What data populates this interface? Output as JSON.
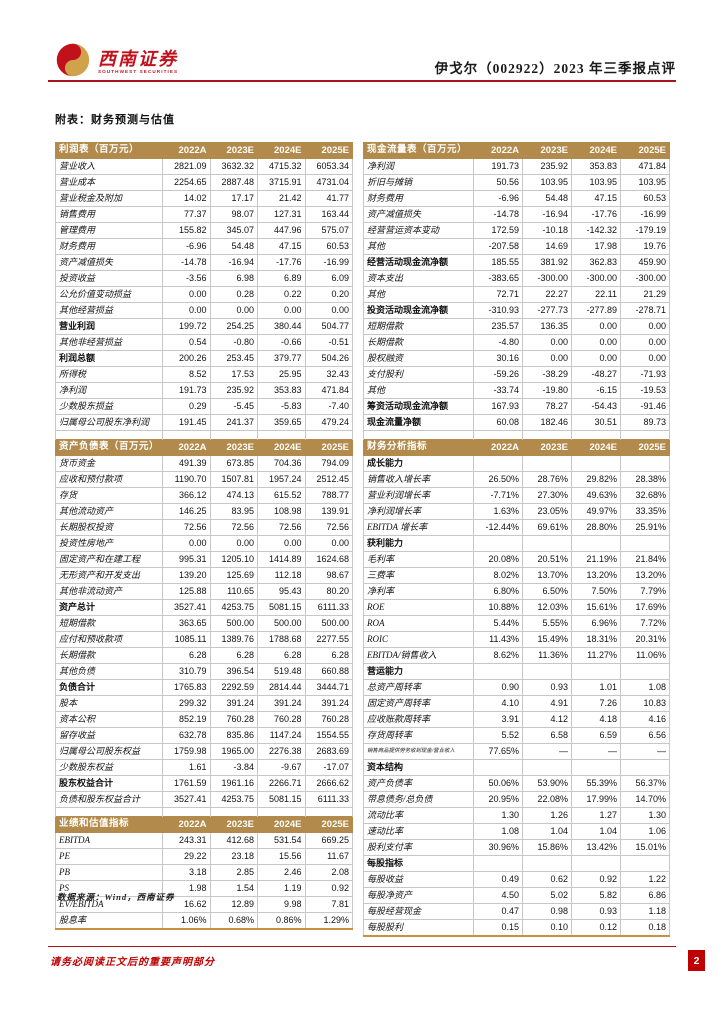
{
  "header": {
    "brand_cn": "西南证券",
    "brand_en": "SOUTHWEST SECURITIES",
    "report_title": "伊戈尔（002922）2023 年三季报点评"
  },
  "section_title": "附表：财务预测与估值",
  "years": [
    "2022A",
    "2023E",
    "2024E",
    "2025E"
  ],
  "colors": {
    "table_header_gold": "#b28a4b",
    "accent_red": "#c00000",
    "bottom_rule_gold": "#c9913d"
  },
  "tables": {
    "income": {
      "title": "利润表（百万元）",
      "rows": [
        {
          "label": "营业收入",
          "values": [
            "2821.09",
            "3632.32",
            "4715.32",
            "6053.34"
          ]
        },
        {
          "label": "营业成本",
          "values": [
            "2254.65",
            "2887.48",
            "3715.91",
            "4731.04"
          ]
        },
        {
          "label": "营业税金及附加",
          "values": [
            "14.02",
            "17.17",
            "21.42",
            "41.77"
          ]
        },
        {
          "label": "销售费用",
          "values": [
            "77.37",
            "98.07",
            "127.31",
            "163.44"
          ]
        },
        {
          "label": "管理费用",
          "values": [
            "155.82",
            "345.07",
            "447.96",
            "575.07"
          ]
        },
        {
          "label": "财务费用",
          "values": [
            "-6.96",
            "54.48",
            "47.15",
            "60.53"
          ]
        },
        {
          "label": "资产减值损失",
          "values": [
            "-14.78",
            "-16.94",
            "-17.76",
            "-16.99"
          ]
        },
        {
          "label": "投资收益",
          "values": [
            "-3.56",
            "6.98",
            "6.89",
            "6.09"
          ]
        },
        {
          "label": "公允价值变动损益",
          "values": [
            "0.00",
            "0.28",
            "0.22",
            "0.20"
          ]
        },
        {
          "label": "其他经营损益",
          "values": [
            "0.00",
            "0.00",
            "0.00",
            "0.00"
          ]
        },
        {
          "label": "营业利润",
          "bold": true,
          "values": [
            "199.72",
            "254.25",
            "380.44",
            "504.77"
          ]
        },
        {
          "label": "其他非经营损益",
          "values": [
            "0.54",
            "-0.80",
            "-0.66",
            "-0.51"
          ]
        },
        {
          "label": "利润总额",
          "bold": true,
          "values": [
            "200.26",
            "253.45",
            "379.77",
            "504.26"
          ]
        },
        {
          "label": "所得税",
          "values": [
            "8.52",
            "17.53",
            "25.95",
            "32.43"
          ]
        },
        {
          "label": "净利润",
          "values": [
            "191.73",
            "235.92",
            "353.83",
            "471.84"
          ]
        },
        {
          "label": "少数股东损益",
          "values": [
            "0.29",
            "-5.45",
            "-5.83",
            "-7.40"
          ]
        },
        {
          "label": "归属母公司股东净利润",
          "values": [
            "191.45",
            "241.37",
            "359.65",
            "479.24"
          ]
        }
      ]
    },
    "balance": {
      "title": "资产负债表（百万元）",
      "rows": [
        {
          "label": "货币资金",
          "values": [
            "491.39",
            "673.85",
            "704.36",
            "794.09"
          ]
        },
        {
          "label": "应收和预付款项",
          "values": [
            "1190.70",
            "1507.81",
            "1957.24",
            "2512.45"
          ]
        },
        {
          "label": "存货",
          "values": [
            "366.12",
            "474.13",
            "615.52",
            "788.77"
          ]
        },
        {
          "label": "其他流动资产",
          "values": [
            "146.25",
            "83.95",
            "108.98",
            "139.91"
          ]
        },
        {
          "label": "长期股权投资",
          "values": [
            "72.56",
            "72.56",
            "72.56",
            "72.56"
          ]
        },
        {
          "label": "投资性房地产",
          "values": [
            "0.00",
            "0.00",
            "0.00",
            "0.00"
          ]
        },
        {
          "label": "固定资产和在建工程",
          "values": [
            "995.31",
            "1205.10",
            "1414.89",
            "1624.68"
          ]
        },
        {
          "label": "无形资产和开发支出",
          "values": [
            "139.20",
            "125.69",
            "112.18",
            "98.67"
          ]
        },
        {
          "label": "其他非流动资产",
          "values": [
            "125.88",
            "110.65",
            "95.43",
            "80.20"
          ]
        },
        {
          "label": "资产总计",
          "bold": true,
          "values": [
            "3527.41",
            "4253.75",
            "5081.15",
            "6111.33"
          ]
        },
        {
          "label": "短期借款",
          "values": [
            "363.65",
            "500.00",
            "500.00",
            "500.00"
          ]
        },
        {
          "label": "应付和预收款项",
          "values": [
            "1085.11",
            "1389.76",
            "1788.68",
            "2277.55"
          ]
        },
        {
          "label": "长期借款",
          "values": [
            "6.28",
            "6.28",
            "6.28",
            "6.28"
          ]
        },
        {
          "label": "其他负债",
          "values": [
            "310.79",
            "396.54",
            "519.48",
            "660.88"
          ]
        },
        {
          "label": "负债合计",
          "bold": true,
          "values": [
            "1765.83",
            "2292.59",
            "2814.44",
            "3444.71"
          ]
        },
        {
          "label": "股本",
          "values": [
            "299.32",
            "391.24",
            "391.24",
            "391.24"
          ]
        },
        {
          "label": "资本公积",
          "values": [
            "852.19",
            "760.28",
            "760.28",
            "760.28"
          ]
        },
        {
          "label": "留存收益",
          "values": [
            "632.78",
            "835.86",
            "1147.24",
            "1554.55"
          ]
        },
        {
          "label": "归属母公司股东权益",
          "values": [
            "1759.98",
            "1965.00",
            "2276.38",
            "2683.69"
          ]
        },
        {
          "label": "少数股东权益",
          "values": [
            "1.61",
            "-3.84",
            "-9.67",
            "-17.07"
          ]
        },
        {
          "label": "股东权益合计",
          "bold": true,
          "values": [
            "1761.59",
            "1961.16",
            "2266.71",
            "2666.62"
          ]
        },
        {
          "label": "负债和股东权益合计",
          "values": [
            "3527.41",
            "4253.75",
            "5081.15",
            "6111.33"
          ]
        }
      ]
    },
    "valuation": {
      "title": "业绩和估值指标",
      "rows": [
        {
          "label": "EBITDA",
          "values": [
            "243.31",
            "412.68",
            "531.54",
            "669.25"
          ]
        },
        {
          "label": "PE",
          "values": [
            "29.22",
            "23.18",
            "15.56",
            "11.67"
          ]
        },
        {
          "label": "PB",
          "values": [
            "3.18",
            "2.85",
            "2.46",
            "2.08"
          ]
        },
        {
          "label": "PS",
          "values": [
            "1.98",
            "1.54",
            "1.19",
            "0.92"
          ]
        },
        {
          "label": "EV/EBITDA",
          "values": [
            "16.62",
            "12.89",
            "9.98",
            "7.81"
          ]
        },
        {
          "label": "股息率",
          "values": [
            "1.06%",
            "0.68%",
            "0.86%",
            "1.29%"
          ]
        }
      ]
    },
    "cashflow": {
      "title": "现金流量表（百万元）",
      "rows": [
        {
          "label": "净利润",
          "values": [
            "191.73",
            "235.92",
            "353.83",
            "471.84"
          ]
        },
        {
          "label": "折旧与摊销",
          "values": [
            "50.56",
            "103.95",
            "103.95",
            "103.95"
          ]
        },
        {
          "label": "财务费用",
          "values": [
            "-6.96",
            "54.48",
            "47.15",
            "60.53"
          ]
        },
        {
          "label": "资产减值损失",
          "values": [
            "-14.78",
            "-16.94",
            "-17.76",
            "-16.99"
          ]
        },
        {
          "label": "经营营运资本变动",
          "values": [
            "172.59",
            "-10.18",
            "-142.32",
            "-179.19"
          ]
        },
        {
          "label": "其他",
          "values": [
            "-207.58",
            "14.69",
            "17.98",
            "19.76"
          ]
        },
        {
          "label": "经营活动现金流净额",
          "bold": true,
          "values": [
            "185.55",
            "381.92",
            "362.83",
            "459.90"
          ]
        },
        {
          "label": "资本支出",
          "values": [
            "-383.65",
            "-300.00",
            "-300.00",
            "-300.00"
          ]
        },
        {
          "label": "其他",
          "values": [
            "72.71",
            "22.27",
            "22.11",
            "21.29"
          ]
        },
        {
          "label": "投资活动现金流净额",
          "bold": true,
          "values": [
            "-310.93",
            "-277.73",
            "-277.89",
            "-278.71"
          ]
        },
        {
          "label": "短期借款",
          "values": [
            "235.57",
            "136.35",
            "0.00",
            "0.00"
          ]
        },
        {
          "label": "长期借款",
          "values": [
            "-4.80",
            "0.00",
            "0.00",
            "0.00"
          ]
        },
        {
          "label": "股权融资",
          "values": [
            "30.16",
            "0.00",
            "0.00",
            "0.00"
          ]
        },
        {
          "label": "支付股利",
          "values": [
            "-59.26",
            "-38.29",
            "-48.27",
            "-71.93"
          ]
        },
        {
          "label": "其他",
          "values": [
            "-33.74",
            "-19.80",
            "-6.15",
            "-19.53"
          ]
        },
        {
          "label": "筹资活动现金流净额",
          "bold": true,
          "values": [
            "167.93",
            "78.27",
            "-54.43",
            "-91.46"
          ]
        },
        {
          "label": "现金流量净额",
          "bold": true,
          "values": [
            "60.08",
            "182.46",
            "30.51",
            "89.73"
          ]
        }
      ]
    },
    "analysis": {
      "title": "财务分析指标",
      "rows": [
        {
          "label": "成长能力",
          "section": true,
          "values": [
            "",
            "",
            "",
            ""
          ]
        },
        {
          "label": "销售收入增长率",
          "values": [
            "26.50%",
            "28.76%",
            "29.82%",
            "28.38%"
          ]
        },
        {
          "label": "营业利润增长率",
          "values": [
            "-7.71%",
            "27.30%",
            "49.63%",
            "32.68%"
          ]
        },
        {
          "label": "净利润增长率",
          "values": [
            "1.63%",
            "23.05%",
            "49.97%",
            "33.35%"
          ]
        },
        {
          "label": "EBITDA 增长率",
          "values": [
            "-12.44%",
            "69.61%",
            "28.80%",
            "25.91%"
          ]
        },
        {
          "label": "获利能力",
          "section": true,
          "values": [
            "",
            "",
            "",
            ""
          ]
        },
        {
          "label": "毛利率",
          "values": [
            "20.08%",
            "20.51%",
            "21.19%",
            "21.84%"
          ]
        },
        {
          "label": "三费率",
          "values": [
            "8.02%",
            "13.70%",
            "13.20%",
            "13.20%"
          ]
        },
        {
          "label": "净利率",
          "values": [
            "6.80%",
            "6.50%",
            "7.50%",
            "7.79%"
          ]
        },
        {
          "label": "ROE",
          "values": [
            "10.88%",
            "12.03%",
            "15.61%",
            "17.69%"
          ]
        },
        {
          "label": "ROA",
          "values": [
            "5.44%",
            "5.55%",
            "6.96%",
            "7.72%"
          ]
        },
        {
          "label": "ROIC",
          "values": [
            "11.43%",
            "15.49%",
            "18.31%",
            "20.31%"
          ]
        },
        {
          "label": "EBITDA/销售收入",
          "values": [
            "8.62%",
            "11.36%",
            "11.27%",
            "11.06%"
          ]
        },
        {
          "label": "营运能力",
          "section": true,
          "values": [
            "",
            "",
            "",
            ""
          ]
        },
        {
          "label": "总资产周转率",
          "values": [
            "0.90",
            "0.93",
            "1.01",
            "1.08"
          ]
        },
        {
          "label": "固定资产周转率",
          "values": [
            "4.10",
            "4.91",
            "7.26",
            "10.83"
          ]
        },
        {
          "label": "应收账款周转率",
          "values": [
            "3.91",
            "4.12",
            "4.18",
            "4.16"
          ]
        },
        {
          "label": "存货周转率",
          "values": [
            "5.52",
            "6.58",
            "6.59",
            "6.56"
          ]
        },
        {
          "label": "销售商品提供劳务收到现金/营业收入",
          "small": true,
          "values": [
            "77.65%",
            "—",
            "—",
            "—"
          ]
        },
        {
          "label": "资本结构",
          "section": true,
          "values": [
            "",
            "",
            "",
            ""
          ]
        },
        {
          "label": "资产负债率",
          "values": [
            "50.06%",
            "53.90%",
            "55.39%",
            "56.37%"
          ]
        },
        {
          "label": "带息债务/总负债",
          "values": [
            "20.95%",
            "22.08%",
            "17.99%",
            "14.70%"
          ]
        },
        {
          "label": "流动比率",
          "values": [
            "1.30",
            "1.26",
            "1.27",
            "1.30"
          ]
        },
        {
          "label": "速动比率",
          "values": [
            "1.08",
            "1.04",
            "1.04",
            "1.06"
          ]
        },
        {
          "label": "股利支付率",
          "values": [
            "30.96%",
            "15.86%",
            "13.42%",
            "15.01%"
          ]
        },
        {
          "label": "每股指标",
          "section": true,
          "values": [
            "",
            "",
            "",
            ""
          ]
        },
        {
          "label": "每股收益",
          "values": [
            "0.49",
            "0.62",
            "0.92",
            "1.22"
          ]
        },
        {
          "label": "每股净资产",
          "values": [
            "4.50",
            "5.02",
            "5.82",
            "6.86"
          ]
        },
        {
          "label": "每股经营现金",
          "values": [
            "0.47",
            "0.98",
            "0.93",
            "1.18"
          ]
        },
        {
          "label": "每股股利",
          "values": [
            "0.15",
            "0.10",
            "0.12",
            "0.18"
          ]
        }
      ]
    }
  },
  "source_note": "数据来源：Wind，西南证券",
  "footer": {
    "disclaimer": "请务必阅读正文后的重要声明部分",
    "page_number": "2"
  }
}
